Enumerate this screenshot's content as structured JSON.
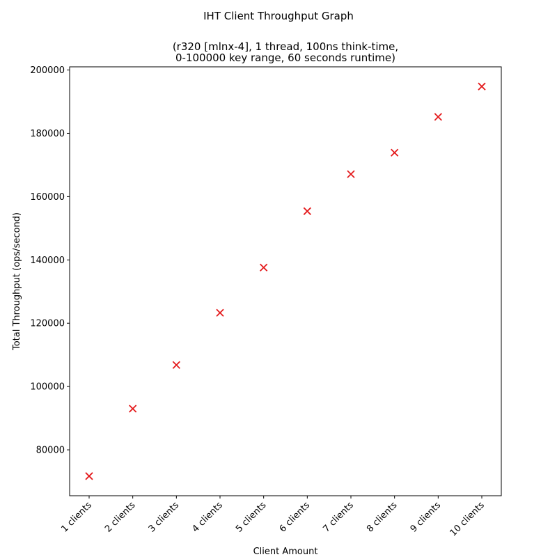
{
  "chart_data": {
    "type": "scatter",
    "suptitle": "IHT Client Throughput Graph",
    "title_lines": [
      "(r320 [mlnx-4], 1 thread, 100ns think-time,",
      "0-100000 key range, 60 seconds runtime)"
    ],
    "xlabel": "Client Amount",
    "ylabel": "Total Throughput (ops/second)",
    "categories": [
      "1 clients",
      "2 clients",
      "3 clients",
      "4 clients",
      "5 clients",
      "6 clients",
      "7 clients",
      "8 clients",
      "9 clients",
      "10 clients"
    ],
    "values": [
      71700,
      93000,
      106800,
      123300,
      137600,
      155400,
      167100,
      173900,
      185200,
      194800
    ],
    "ylim": [
      65500,
      201000
    ],
    "yticks": [
      80000,
      100000,
      120000,
      140000,
      160000,
      180000,
      200000
    ],
    "marker": "x",
    "marker_color": "#e41a1c",
    "grid": false
  }
}
